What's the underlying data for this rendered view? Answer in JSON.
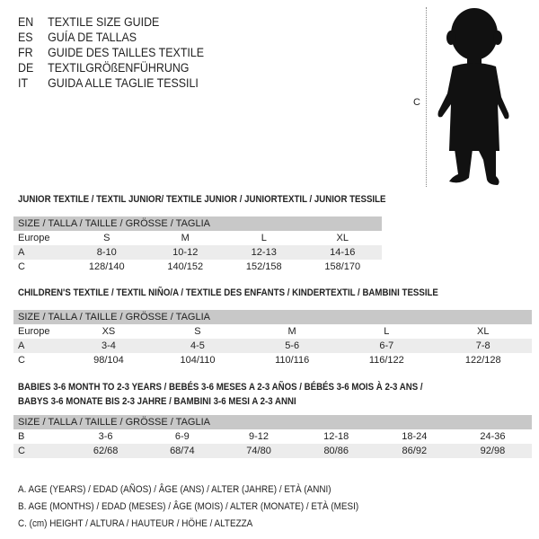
{
  "guide_titles": [
    {
      "code": "EN",
      "text": "TEXTILE SIZE GUIDE"
    },
    {
      "code": "ES",
      "text": "GUÍA DE TALLAS"
    },
    {
      "code": "FR",
      "text": "GUIDE DES TAILLES TEXTILE"
    },
    {
      "code": "DE",
      "text": "TEXTILGRÖßENFÜHRUNG"
    },
    {
      "code": "IT",
      "text": "GUIDA ALLE TAGLIE TESSILI"
    }
  ],
  "figure": {
    "height_label": "C",
    "silhouette": "child-silhouette"
  },
  "size_header": "SIZE / TALLA / TAILLE / GRÖSSE / TAGLIA",
  "junior": {
    "title": "JUNIOR TEXTILE / TEXTIL JUNIOR/ TEXTILE JUNIOR / JUNIORTEXTIL / JUNIOR TESSILE",
    "rows": [
      [
        "Europe",
        "S",
        "M",
        "L",
        "XL"
      ],
      [
        "A",
        "8-10",
        "10-12",
        "12-13",
        "14-16"
      ],
      [
        "C",
        "128/140",
        "140/152",
        "152/158",
        "158/170"
      ]
    ]
  },
  "children": {
    "title": "CHILDREN'S TEXTILE / TEXTIL NIÑO/A / TEXTILE DES ENFANTS / KINDERTEXTIL / BAMBINI TESSILE",
    "rows": [
      [
        "Europe",
        "XS",
        "S",
        "M",
        "L",
        "XL"
      ],
      [
        "A",
        "3-4",
        "4-5",
        "5-6",
        "6-7",
        "7-8"
      ],
      [
        "C",
        "98/104",
        "104/110",
        "110/116",
        "116/122",
        "122/128"
      ]
    ]
  },
  "babies": {
    "title_line1": "BABIES 3-6 MONTH TO 2-3 YEARS / BEBÉS 3-6 MESES A 2-3 AÑOS / BÉBÉS 3-6 MOIS À 2-3 ANS /",
    "title_line2": "BABYS 3-6 MONATE BIS 2-3 JAHRE / BAMBINI 3-6 MESI A 2-3 ANNI",
    "rows": [
      [
        "B",
        "3-6",
        "6-9",
        "9-12",
        "12-18",
        "18-24",
        "24-36"
      ],
      [
        "C",
        "62/68",
        "68/74",
        "74/80",
        "80/86",
        "86/92",
        "92/98"
      ]
    ]
  },
  "notes": [
    "A. AGE (YEARS) / EDAD (AÑOS) / ÂGE (ANS) / ALTER (JAHRE) / ETÀ (ANNI)",
    "B. AGE (MONTHS) / EDAD (MESES) / ÂGE (MOIS) / ALTER (MONATE) / ETÀ (MESI)",
    "C. (cm) HEIGHT / ALTURA / HAUTEUR / HÖHE / ALTEZZA"
  ]
}
